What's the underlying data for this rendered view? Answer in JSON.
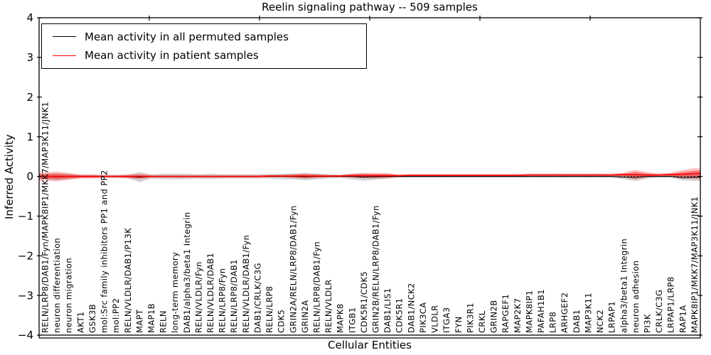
{
  "figure": {
    "title": "Reelin signaling pathway -- 509 samples",
    "background": "#ffffff"
  },
  "legend": {
    "items": [
      {
        "label": "Mean activity in all permuted samples",
        "color": "#000000"
      },
      {
        "label": "Mean activity in patient samples",
        "color": "#ff0000"
      }
    ]
  },
  "axes": {
    "ylabel": "Inferred Activity",
    "xlabel": "Cellular Entities",
    "ylim": [
      -4,
      4
    ],
    "ytick_labels": [
      "4",
      "3",
      "2",
      "1",
      "0",
      "−1",
      "−2",
      "−3",
      "−4"
    ]
  },
  "chart_data": {
    "type": "line",
    "title": "Reelin signaling pathway -- 509 samples",
    "xlabel": "Cellular Entities",
    "ylabel": "Inferred Activity",
    "ylim": [
      -4,
      4
    ],
    "grid": false,
    "legend_position": "upper left",
    "zero_line": {
      "value": 0,
      "style": "dotted",
      "color": "#000000"
    },
    "categories": [
      "RELN/LRP8/DAB1/Fyn/MAPK8IP1/MKK7/MAP3K11/JNK1",
      "neuron differentiation",
      "neuron migration",
      "AKT1",
      "GSK3B",
      "mol:Src family inhibitors PP1 and PP2",
      "mol:PP2",
      "RELN/VLDLR/DAB1/P13K",
      "MAPT",
      "MAP1B",
      "RELN",
      "long-term memory",
      "DAB1/alpha3/beta1 Integrin",
      "RELN/VLDLR/Fyn",
      "RELN/VLDLR/DAB1",
      "RELN/LRP8/Fyn",
      "RELN/LRP8/DAB1",
      "RELN/VLDLR/DAB1/Fyn",
      "DAB1/CRLK/C3G",
      "RELN/LRP8",
      "CDK5",
      "GRIN2A/RELN/LRP8/DAB1/Fyn",
      "GRIN2A",
      "RELN/LRP8/DAB1/Fyn",
      "RELN/VLDLR",
      "MAPK8",
      "ITGB1",
      "CDK5R1/CDK5",
      "GRIN2B/RELN/LRP8/DAB1/Fyn",
      "DAB1/LIS1",
      "CDK5R1",
      "DAB1/NCK2",
      "PIK3CA",
      "VLDLR",
      "ITGA3",
      "FYN",
      "PIK3R1",
      "CRKL",
      "GRIN2B",
      "RAPGEF1",
      "MAP2K7",
      "MAPK8IP1",
      "PAFAH1B1",
      "LRP8",
      "ARHGEF2",
      "DAB1",
      "MAP3K11",
      "NCK2",
      "LRPAP1",
      "alpha3/beta1 Integrin",
      "neuron adhesion",
      "PI3K",
      "CRLK/C3G",
      "LRPAP1/LRP8",
      "RAP1A",
      "MAPK8IP1/MKK7/MAP3K11/JNK1"
    ],
    "series": [
      {
        "name": "Mean activity in all permuted samples",
        "color": "#000000",
        "band_color": "rgba(0,0,0,0.17)",
        "values": [
          0,
          -0.009,
          0,
          0,
          0,
          0,
          0,
          0,
          -0.018,
          0,
          0,
          0,
          0,
          0,
          0,
          0,
          0,
          0,
          0,
          0,
          0,
          0,
          -0.009,
          0,
          0,
          0,
          0,
          -0.018,
          -0.009,
          0,
          0,
          0,
          0,
          0,
          0,
          0,
          0,
          0,
          0,
          0,
          0,
          0,
          0,
          0,
          0,
          0,
          0,
          0,
          0,
          -0.018,
          -0.027,
          0,
          0,
          0,
          -0.031,
          -0.022
        ],
        "band_halfwidth": [
          0.072,
          0.089,
          0.072,
          0.036,
          0.036,
          0.036,
          0.036,
          0.036,
          0.125,
          0.054,
          0.072,
          0.072,
          0.072,
          0.054,
          0.072,
          0.054,
          0.054,
          0.054,
          0.054,
          0.054,
          0.072,
          0.072,
          0.089,
          0.072,
          0.054,
          0.036,
          0.072,
          0.089,
          0.072,
          0.054,
          0.036,
          0.036,
          0.036,
          0.036,
          0.036,
          0.036,
          0.036,
          0.036,
          0.036,
          0.036,
          0.036,
          0.036,
          0.036,
          0.036,
          0.036,
          0.036,
          0.036,
          0.036,
          0.036,
          0.054,
          0.089,
          0.054,
          0.036,
          0.036,
          0.072,
          0.089
        ]
      },
      {
        "name": "Mean activity in patient samples",
        "color": "#ff0000",
        "band_color": "rgba(255,0,0,0.22)",
        "band_color_inner": "rgba(255,0,0,0.38)",
        "values": [
          0,
          0,
          0,
          0,
          0,
          0,
          0,
          0,
          0,
          0,
          0,
          0,
          0,
          0,
          0,
          0,
          0,
          0,
          0,
          0.009,
          0.009,
          0.009,
          0.009,
          0.009,
          0.009,
          0.009,
          0.018,
          0.018,
          0.018,
          0.018,
          0.018,
          0.027,
          0.027,
          0.027,
          0.027,
          0.027,
          0.027,
          0.027,
          0.027,
          0.027,
          0.027,
          0.036,
          0.036,
          0.036,
          0.036,
          0.036,
          0.036,
          0.036,
          0.036,
          0.045,
          0.045,
          0.036,
          0.036,
          0.045,
          0.054,
          0.072
        ],
        "band_halfwidth": [
          0.107,
          0.125,
          0.089,
          0.054,
          0.054,
          0.036,
          0.036,
          0.054,
          0.072,
          0.036,
          0.036,
          0.036,
          0.036,
          0.036,
          0.036,
          0.036,
          0.036,
          0.036,
          0.036,
          0.036,
          0.036,
          0.054,
          0.072,
          0.054,
          0.036,
          0.036,
          0.054,
          0.072,
          0.072,
          0.072,
          0.036,
          0.036,
          0.036,
          0.036,
          0.036,
          0.036,
          0.036,
          0.036,
          0.036,
          0.036,
          0.036,
          0.036,
          0.036,
          0.036,
          0.036,
          0.036,
          0.036,
          0.036,
          0.036,
          0.054,
          0.125,
          0.072,
          0.036,
          0.054,
          0.107,
          0.143
        ]
      }
    ]
  }
}
